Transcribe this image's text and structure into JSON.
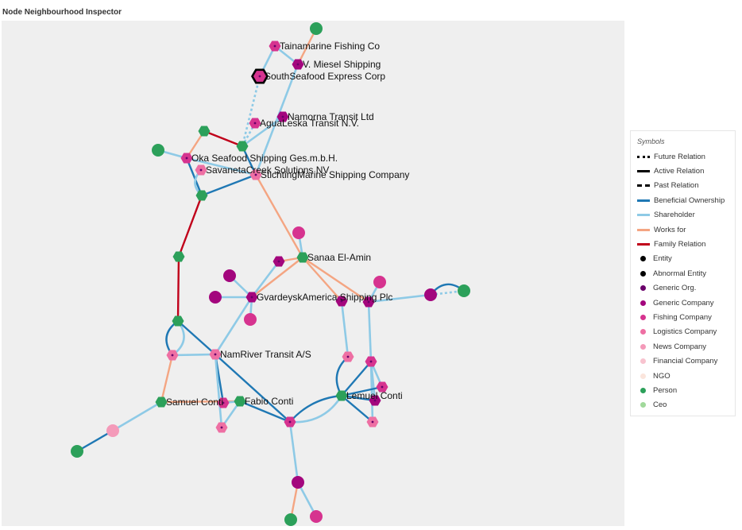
{
  "title": "Node Neighbourhood Inspector",
  "legend": {
    "title": "Symbols",
    "items": [
      {
        "label": "Future Relation",
        "kind": "line",
        "color": "#000000",
        "style": "dotted"
      },
      {
        "label": "Active Relation",
        "kind": "line",
        "color": "#000000",
        "style": "solid"
      },
      {
        "label": "Past Relation",
        "kind": "line",
        "color": "#000000",
        "style": "dashed"
      },
      {
        "label": "Beneficial Ownership",
        "kind": "line",
        "color": "#1f78b4",
        "style": "solid"
      },
      {
        "label": "Shareholder",
        "kind": "line",
        "color": "#8ecae6",
        "style": "solid"
      },
      {
        "label": "Works for",
        "kind": "line",
        "color": "#f4a582",
        "style": "solid"
      },
      {
        "label": "Family Relation",
        "kind": "line",
        "color": "#c0001a",
        "style": "solid"
      },
      {
        "label": "Entity",
        "kind": "dot",
        "color": "#000000"
      },
      {
        "label": "Abnormal Entity",
        "kind": "dot",
        "color": "#000000"
      },
      {
        "label": "Generic Org.",
        "kind": "dot",
        "color": "#6a006a"
      },
      {
        "label": "Generic Company",
        "kind": "dot",
        "color": "#a3067d"
      },
      {
        "label": "Fishing Company",
        "kind": "dot",
        "color": "#d6338f"
      },
      {
        "label": "Logistics Company",
        "kind": "dot",
        "color": "#ee6fa3"
      },
      {
        "label": "News Company",
        "kind": "dot",
        "color": "#f49ab9"
      },
      {
        "label": "Financial Company",
        "kind": "dot",
        "color": "#f8c3cf"
      },
      {
        "label": "NGO",
        "kind": "dot",
        "color": "#fbe5dc"
      },
      {
        "label": "Person",
        "kind": "dot",
        "color": "#2ca05a"
      },
      {
        "label": "Ceo",
        "kind": "dot",
        "color": "#a1d99b"
      }
    ]
  },
  "labels": {
    "tainamarine": "Tainamarine Fishing Co",
    "miesel": "V. Miesel Shipping",
    "southseafood": "SouthSeafood Express Corp",
    "namorna": "Namorna Transit Ltd",
    "agualeska": "AguaLeska Transit N.V.",
    "oka": "Oka Seafood Shipping Ges.m.b.H.",
    "savanetacreek": "SavanetaCreek Solutions NV",
    "stichting": "StichtingMarine Shipping Company",
    "sanaa": "Sanaa El-Amin",
    "gvardeysk": "GvardeyskAmerica Shipping Plc",
    "namriver": "NamRiver Transit A/S",
    "samuel": "Samuel Conti",
    "fabio": "Fabio Conti",
    "lemuel": "Lemuel Conti"
  }
}
